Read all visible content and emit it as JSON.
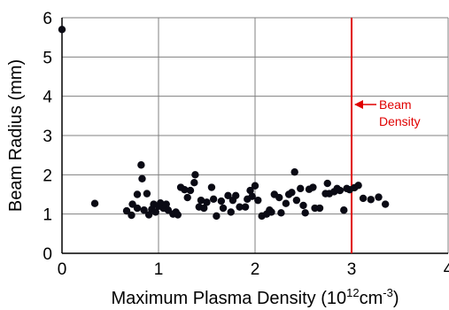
{
  "chart_data": {
    "type": "scatter",
    "xlabel": {
      "main": "Maximum Plasma Density (10",
      "sup1": "12",
      "mid": "cm",
      "sup2": "-3",
      "end": ")"
    },
    "ylabel": "Beam Radius (mm)",
    "xlim": [
      0,
      4
    ],
    "ylim": [
      0,
      6
    ],
    "x_ticks": [
      "0",
      "1",
      "2",
      "3",
      "4"
    ],
    "y_ticks": [
      "0",
      "1",
      "2",
      "3",
      "4",
      "5",
      "6"
    ],
    "grid": true,
    "colors": {
      "points": "#0a0a14",
      "marker_line": "#e00000",
      "annotation": "#e00000",
      "grid": "#808080"
    },
    "reference_line": {
      "x": 3.0
    },
    "annotation": {
      "line1": "Beam",
      "line2": "Density"
    },
    "points": [
      [
        0.0,
        5.7
      ],
      [
        0.34,
        1.27
      ],
      [
        0.67,
        1.08
      ],
      [
        0.72,
        0.97
      ],
      [
        0.73,
        1.25
      ],
      [
        0.78,
        1.5
      ],
      [
        0.78,
        1.15
      ],
      [
        0.82,
        2.25
      ],
      [
        0.83,
        1.9
      ],
      [
        0.85,
        1.1
      ],
      [
        0.88,
        1.52
      ],
      [
        0.9,
        0.98
      ],
      [
        0.93,
        1.12
      ],
      [
        0.95,
        1.25
      ],
      [
        0.97,
        1.05
      ],
      [
        1.0,
        1.2
      ],
      [
        1.02,
        1.28
      ],
      [
        1.05,
        1.15
      ],
      [
        1.08,
        1.25
      ],
      [
        1.1,
        1.1
      ],
      [
        1.15,
        1.0
      ],
      [
        1.18,
        1.05
      ],
      [
        1.2,
        0.98
      ],
      [
        1.23,
        1.68
      ],
      [
        1.27,
        1.62
      ],
      [
        1.3,
        1.42
      ],
      [
        1.33,
        1.6
      ],
      [
        1.37,
        1.8
      ],
      [
        1.38,
        2.0
      ],
      [
        1.42,
        1.18
      ],
      [
        1.44,
        1.35
      ],
      [
        1.47,
        1.15
      ],
      [
        1.5,
        1.3
      ],
      [
        1.55,
        1.68
      ],
      [
        1.57,
        1.38
      ],
      [
        1.6,
        0.95
      ],
      [
        1.65,
        1.33
      ],
      [
        1.67,
        1.15
      ],
      [
        1.72,
        1.47
      ],
      [
        1.75,
        1.05
      ],
      [
        1.77,
        1.35
      ],
      [
        1.8,
        1.47
      ],
      [
        1.84,
        1.18
      ],
      [
        1.9,
        1.18
      ],
      [
        1.92,
        1.38
      ],
      [
        1.95,
        1.6
      ],
      [
        1.97,
        1.45
      ],
      [
        2.0,
        1.72
      ],
      [
        2.03,
        1.35
      ],
      [
        2.07,
        0.95
      ],
      [
        2.12,
        1.0
      ],
      [
        2.15,
        1.1
      ],
      [
        2.17,
        1.05
      ],
      [
        2.2,
        1.5
      ],
      [
        2.25,
        1.42
      ],
      [
        2.27,
        1.03
      ],
      [
        2.32,
        1.27
      ],
      [
        2.35,
        1.5
      ],
      [
        2.38,
        1.55
      ],
      [
        2.41,
        2.07
      ],
      [
        2.43,
        1.35
      ],
      [
        2.47,
        1.65
      ],
      [
        2.5,
        1.22
      ],
      [
        2.52,
        1.03
      ],
      [
        2.56,
        1.63
      ],
      [
        2.6,
        1.68
      ],
      [
        2.62,
        1.15
      ],
      [
        2.67,
        1.15
      ],
      [
        2.73,
        1.52
      ],
      [
        2.75,
        1.78
      ],
      [
        2.77,
        1.52
      ],
      [
        2.82,
        1.57
      ],
      [
        2.85,
        1.65
      ],
      [
        2.88,
        1.6
      ],
      [
        2.92,
        1.1
      ],
      [
        2.95,
        1.65
      ],
      [
        2.98,
        1.62
      ],
      [
        3.03,
        1.67
      ],
      [
        3.07,
        1.73
      ],
      [
        3.12,
        1.4
      ],
      [
        3.2,
        1.37
      ],
      [
        3.28,
        1.43
      ],
      [
        3.35,
        1.25
      ]
    ]
  }
}
